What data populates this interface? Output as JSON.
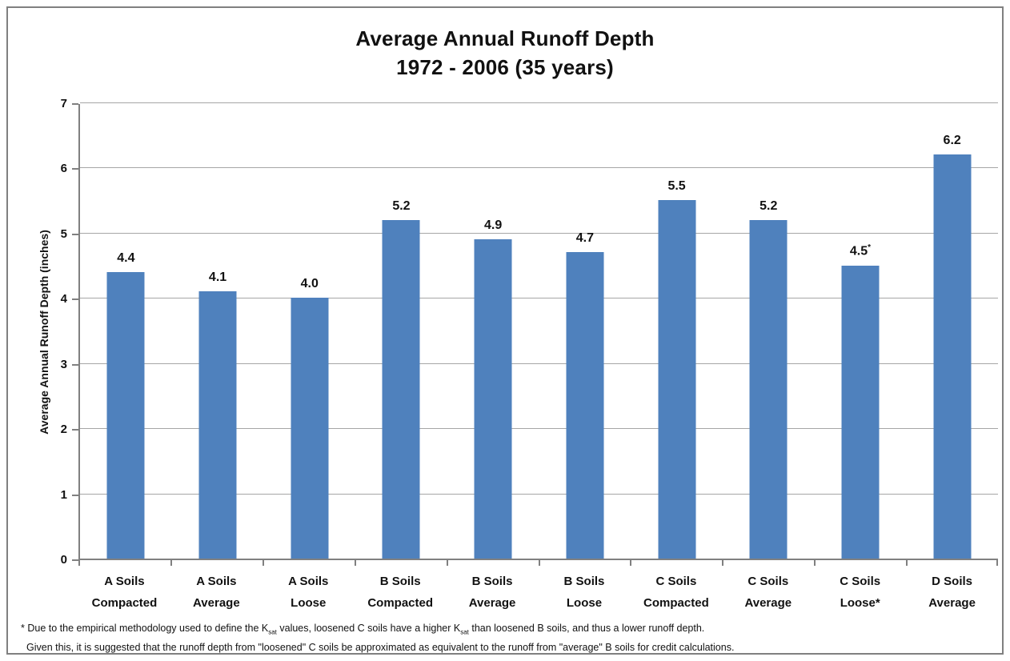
{
  "chart_data": {
    "type": "bar",
    "title": "Average Annual Runoff Depth",
    "subtitle": "1972 - 2006 (35 years)",
    "ylabel": "Average Annual Runoff Depth (inches)",
    "ylim": [
      0,
      7
    ],
    "ytick_interval": 1,
    "grid": true,
    "legend": "none",
    "categories": [
      [
        "A Soils",
        "Compacted"
      ],
      [
        "A Soils",
        "Average"
      ],
      [
        "A Soils",
        "Loose"
      ],
      [
        "B Soils",
        "Compacted"
      ],
      [
        "B Soils",
        "Average"
      ],
      [
        "B Soils",
        "Loose"
      ],
      [
        "C Soils",
        "Compacted"
      ],
      [
        "C Soils",
        "Average"
      ],
      [
        "C Soils",
        "Loose*"
      ],
      [
        "D Soils",
        "Average"
      ]
    ],
    "values": [
      4.4,
      4.1,
      4.0,
      5.2,
      4.9,
      4.7,
      5.5,
      5.2,
      4.5,
      6.2
    ],
    "value_labels": [
      "4.4",
      "4.1",
      "4.0",
      "5.2",
      "4.9",
      "4.7",
      "5.5",
      "5.2",
      "4.5",
      "6.2"
    ],
    "value_label_superscripts": [
      "",
      "",
      "",
      "",
      "",
      "",
      "",
      "",
      "*",
      ""
    ],
    "colors": {
      "bar": "#4f81bd",
      "gridline": "#a6a6a6",
      "axis": "#808080",
      "text": "#111111"
    }
  },
  "footnote": {
    "l1a": "* Due to the empirical methodology used to define the K",
    "l1sub1": "sat",
    "l1b": " values, loosened C soils have a higher K",
    "l1sub2": "sat",
    "l1c": " than loosened B soils, and thus a lower runoff depth.",
    "l2": "Given this, it is suggested that the runoff depth from \"loosened\" C soils be approximated as equivalent to the runoff from \"average\" B soils for credit calculations."
  }
}
